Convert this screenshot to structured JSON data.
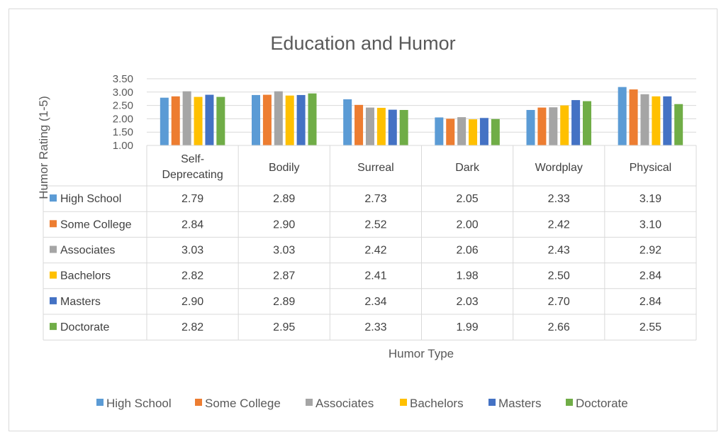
{
  "chart_data": {
    "type": "bar",
    "title": "Education and Humor",
    "xlabel": "Humor Type",
    "ylabel": "Humor Rating (1-5)",
    "ylim": [
      1.0,
      3.5
    ],
    "yticks": [
      "1.00",
      "1.50",
      "2.00",
      "2.50",
      "3.00",
      "3.50"
    ],
    "grid": true,
    "legend_position": "bottom",
    "data_table": true,
    "categories": [
      "Self-Deprecating",
      "Bodily",
      "Surreal",
      "Dark",
      "Wordplay",
      "Physical"
    ],
    "series": [
      {
        "name": "High School",
        "color": "#5b9bd5",
        "values": [
          2.79,
          2.89,
          2.73,
          2.05,
          2.33,
          3.19
        ]
      },
      {
        "name": "Some College",
        "color": "#ed7d31",
        "values": [
          2.84,
          2.9,
          2.52,
          2.0,
          2.42,
          3.1
        ]
      },
      {
        "name": "Associates",
        "color": "#a5a5a5",
        "values": [
          3.03,
          3.03,
          2.42,
          2.06,
          2.43,
          2.92
        ]
      },
      {
        "name": "Bachelors",
        "color": "#ffc000",
        "values": [
          2.82,
          2.87,
          2.41,
          1.98,
          2.5,
          2.84
        ]
      },
      {
        "name": "Masters",
        "color": "#4472c4",
        "values": [
          2.9,
          2.89,
          2.34,
          2.03,
          2.7,
          2.84
        ]
      },
      {
        "name": "Doctorate",
        "color": "#70ad47",
        "values": [
          2.82,
          2.95,
          2.33,
          1.99,
          2.66,
          2.55
        ]
      }
    ]
  }
}
